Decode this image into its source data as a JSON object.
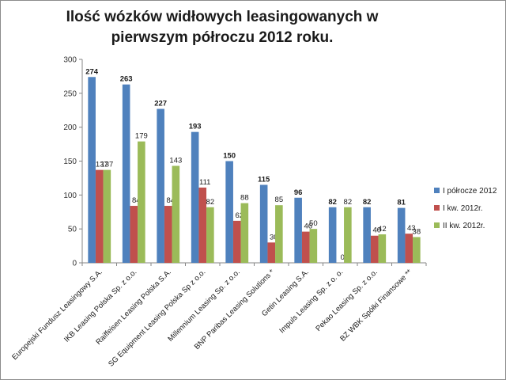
{
  "chart_data": {
    "type": "bar",
    "title": "Ilość wózków widłowych leasingowanych w pierwszym półroczu 2012 roku.",
    "categories": [
      "Europejski Fundusz Leasingowy S.A.",
      "IKB Leasing Polska Sp. z o.o.",
      "Raiffeisen Leasing Polska S.A.",
      "SG Equipment Leasing Polska Sp z o.o.",
      "Millennium Leasing Sp. z o.o.",
      "BNP Paribas Leasing Solutions *",
      "Getin Leasing S.A.",
      "Impuls Leasing Sp. z o. o.",
      "Pekao Leasing Sp. z o.o.",
      "BZ WBK Spółki Finansowe **"
    ],
    "series": [
      {
        "name": "I półrocze 2012",
        "color": "#4f81bd",
        "values": [
          274,
          263,
          227,
          193,
          150,
          115,
          96,
          82,
          82,
          81
        ]
      },
      {
        "name": "I kw. 2012r.",
        "color": "#c0504d",
        "values": [
          137,
          84,
          84,
          111,
          62,
          30,
          46,
          0,
          40,
          43
        ]
      },
      {
        "name": "II kw. 2012r.",
        "color": "#9bbb59",
        "values": [
          137,
          179,
          143,
          82,
          88,
          85,
          50,
          82,
          42,
          38
        ]
      }
    ],
    "ylim": [
      0,
      300
    ],
    "yticks": [
      0,
      50,
      100,
      150,
      200,
      250,
      300
    ],
    "legend": "right",
    "grid": false
  }
}
